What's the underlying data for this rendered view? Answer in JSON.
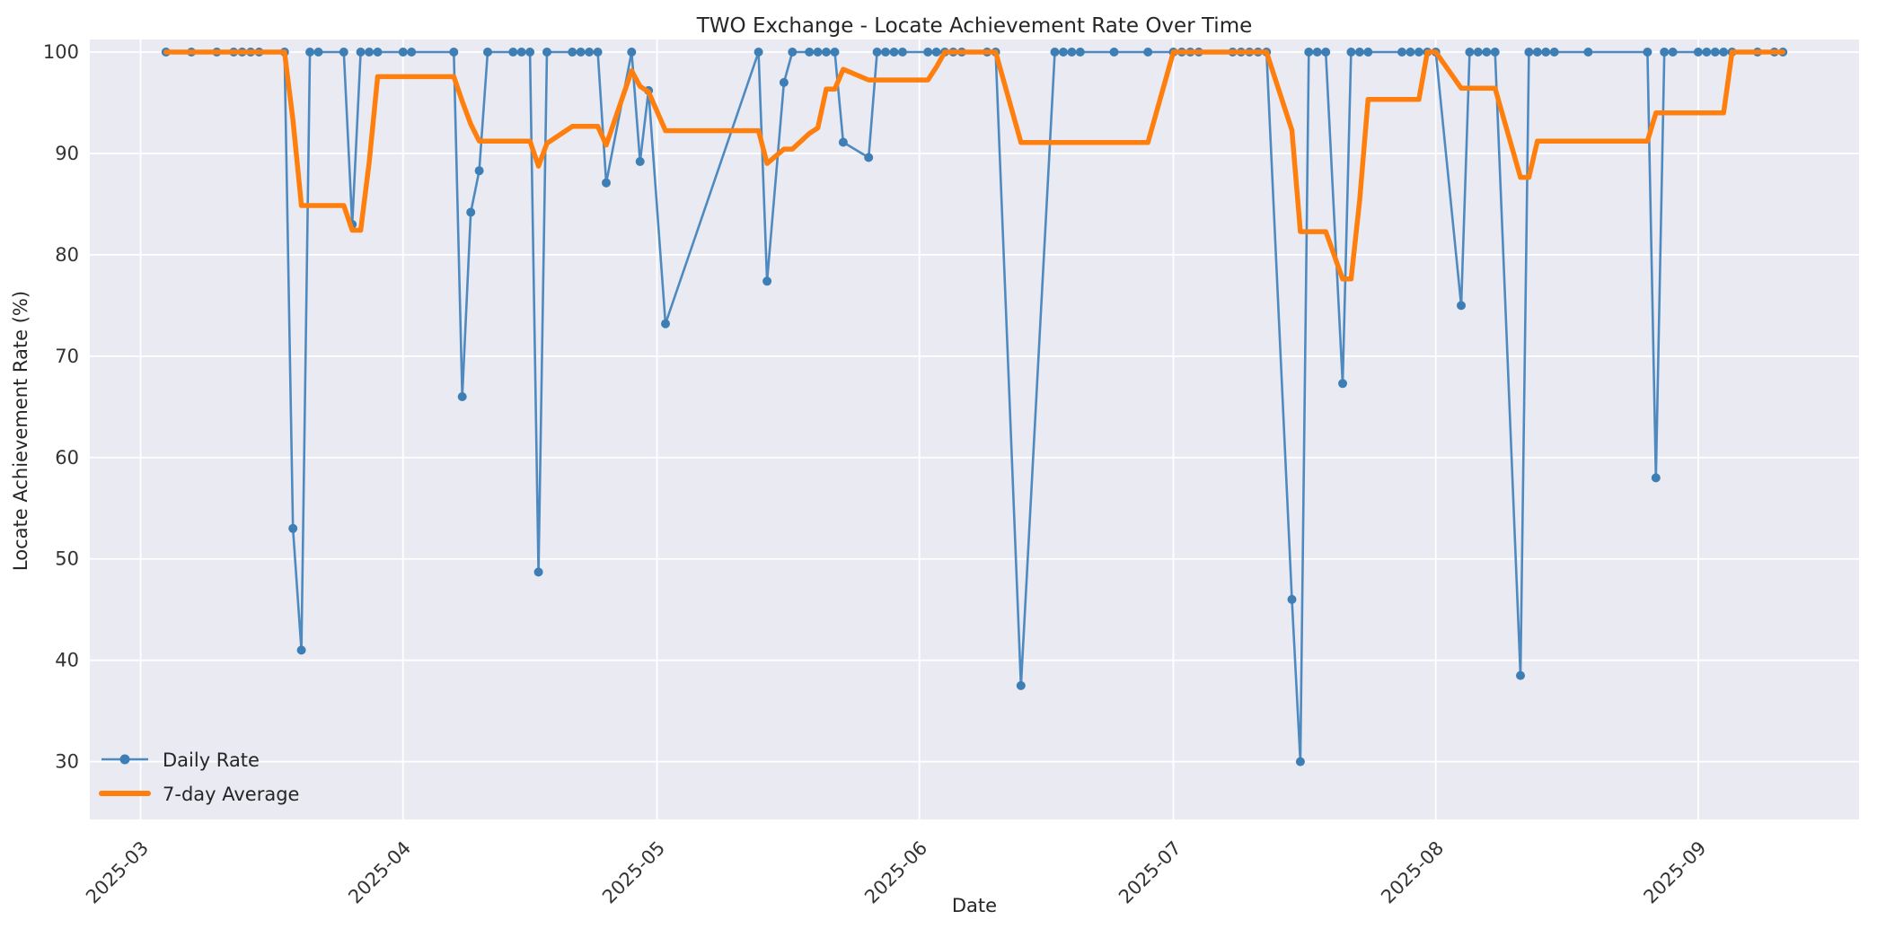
{
  "title": "TWO Exchange - Locate Achievement Rate Over Time",
  "x_axis_label": "Date",
  "y_axis_label": "Locate Achievement Rate (%)",
  "legend": {
    "items": [
      {
        "label": "Daily Rate",
        "color": "#4e8ac0",
        "marker": "circle"
      },
      {
        "label": "7-day Average",
        "color": "#ff7f0e",
        "marker": "line"
      }
    ]
  },
  "colors": {
    "figure_bg": "#ffffff",
    "plot_bg": "#eaeaf2",
    "grid": "#ffffff",
    "daily_line": "#4e8ac0",
    "daily_marker": "#3d7fb5",
    "avg_line": "#ff7f0e",
    "title_text": "#262626",
    "tick_text": "#333333"
  },
  "y_ticks": [
    30,
    40,
    50,
    60,
    70,
    80,
    90,
    100
  ],
  "x_ticks": [
    {
      "date": "2025-03-01",
      "label": "2025-03"
    },
    {
      "date": "2025-04-01",
      "label": "2025-04"
    },
    {
      "date": "2025-05-01",
      "label": "2025-05"
    },
    {
      "date": "2025-06-01",
      "label": "2025-06"
    },
    {
      "date": "2025-07-01",
      "label": "2025-07"
    },
    {
      "date": "2025-08-01",
      "label": "2025-08"
    },
    {
      "date": "2025-09-01",
      "label": "2025-09"
    }
  ],
  "chart_data": {
    "type": "line",
    "title": "TWO Exchange - Locate Achievement Rate Over Time",
    "xlabel": "Date",
    "ylabel": "Locate Achievement Rate (%)",
    "x_range": [
      "2025-02-23",
      "2025-09-20"
    ],
    "ylim": [
      24.3,
      101.24
    ],
    "grid": true,
    "legend_position": "lower-left",
    "avg7_method": "7-point rolling mean of Daily Rate, min_periods=1",
    "series": [
      {
        "name": "Daily Rate",
        "points": [
          [
            "2025-03-04",
            100
          ],
          [
            "2025-03-07",
            100
          ],
          [
            "2025-03-10",
            100
          ],
          [
            "2025-03-12",
            100
          ],
          [
            "2025-03-13",
            100
          ],
          [
            "2025-03-14",
            100
          ],
          [
            "2025-03-15",
            100
          ],
          [
            "2025-03-18",
            100
          ],
          [
            "2025-03-19",
            53
          ],
          [
            "2025-03-20",
            41
          ],
          [
            "2025-03-21",
            100
          ],
          [
            "2025-03-22",
            100
          ],
          [
            "2025-03-25",
            100
          ],
          [
            "2025-03-26",
            83
          ],
          [
            "2025-03-27",
            100
          ],
          [
            "2025-03-28",
            100
          ],
          [
            "2025-03-29",
            100
          ],
          [
            "2025-04-01",
            100
          ],
          [
            "2025-04-02",
            100
          ],
          [
            "2025-04-07",
            100
          ],
          [
            "2025-04-08",
            66
          ],
          [
            "2025-04-09",
            84.2
          ],
          [
            "2025-04-10",
            88.3
          ],
          [
            "2025-04-11",
            100
          ],
          [
            "2025-04-14",
            100
          ],
          [
            "2025-04-15",
            100
          ],
          [
            "2025-04-16",
            100
          ],
          [
            "2025-04-17",
            48.7
          ],
          [
            "2025-04-18",
            100
          ],
          [
            "2025-04-21",
            100
          ],
          [
            "2025-04-22",
            100
          ],
          [
            "2025-04-23",
            100
          ],
          [
            "2025-04-24",
            100
          ],
          [
            "2025-04-25",
            87.1
          ],
          [
            "2025-04-28",
            100
          ],
          [
            "2025-04-29",
            89.2
          ],
          [
            "2025-04-30",
            96.2
          ],
          [
            "2025-05-02",
            73.2
          ],
          [
            "2025-05-13",
            100
          ],
          [
            "2025-05-14",
            77.4
          ],
          [
            "2025-05-16",
            97
          ],
          [
            "2025-05-17",
            100
          ],
          [
            "2025-05-19",
            100
          ],
          [
            "2025-05-20",
            100
          ],
          [
            "2025-05-21",
            100
          ],
          [
            "2025-05-22",
            100
          ],
          [
            "2025-05-23",
            91.1
          ],
          [
            "2025-05-26",
            89.6
          ],
          [
            "2025-05-27",
            100
          ],
          [
            "2025-05-28",
            100
          ],
          [
            "2025-05-29",
            100
          ],
          [
            "2025-05-30",
            100
          ],
          [
            "2025-06-02",
            100
          ],
          [
            "2025-06-03",
            100
          ],
          [
            "2025-06-04",
            100
          ],
          [
            "2025-06-05",
            100
          ],
          [
            "2025-06-06",
            100
          ],
          [
            "2025-06-09",
            100
          ],
          [
            "2025-06-10",
            100
          ],
          [
            "2025-06-13",
            37.5
          ],
          [
            "2025-06-17",
            100
          ],
          [
            "2025-06-18",
            100
          ],
          [
            "2025-06-19",
            100
          ],
          [
            "2025-06-20",
            100
          ],
          [
            "2025-06-24",
            100
          ],
          [
            "2025-06-28",
            100
          ],
          [
            "2025-07-01",
            100
          ],
          [
            "2025-07-02",
            100
          ],
          [
            "2025-07-03",
            100
          ],
          [
            "2025-07-04",
            100
          ],
          [
            "2025-07-08",
            100
          ],
          [
            "2025-07-09",
            100
          ],
          [
            "2025-07-10",
            100
          ],
          [
            "2025-07-11",
            100
          ],
          [
            "2025-07-12",
            100
          ],
          [
            "2025-07-15",
            46
          ],
          [
            "2025-07-16",
            30
          ],
          [
            "2025-07-17",
            100
          ],
          [
            "2025-07-18",
            100
          ],
          [
            "2025-07-19",
            100
          ],
          [
            "2025-07-21",
            67.3
          ],
          [
            "2025-07-22",
            100
          ],
          [
            "2025-07-23",
            100
          ],
          [
            "2025-07-24",
            100
          ],
          [
            "2025-07-28",
            100
          ],
          [
            "2025-07-29",
            100
          ],
          [
            "2025-07-30",
            100
          ],
          [
            "2025-07-31",
            100
          ],
          [
            "2025-08-01",
            100
          ],
          [
            "2025-08-04",
            75
          ],
          [
            "2025-08-05",
            100
          ],
          [
            "2025-08-06",
            100
          ],
          [
            "2025-08-07",
            100
          ],
          [
            "2025-08-08",
            100
          ],
          [
            "2025-08-11",
            38.5
          ],
          [
            "2025-08-12",
            100
          ],
          [
            "2025-08-13",
            100
          ],
          [
            "2025-08-14",
            100
          ],
          [
            "2025-08-15",
            100
          ],
          [
            "2025-08-19",
            100
          ],
          [
            "2025-08-26",
            100
          ],
          [
            "2025-08-27",
            58
          ],
          [
            "2025-08-28",
            100
          ],
          [
            "2025-08-29",
            100
          ],
          [
            "2025-09-01",
            100
          ],
          [
            "2025-09-02",
            100
          ],
          [
            "2025-09-03",
            100
          ],
          [
            "2025-09-04",
            100
          ],
          [
            "2025-09-05",
            100
          ],
          [
            "2025-09-08",
            100
          ],
          [
            "2025-09-10",
            100
          ],
          [
            "2025-09-11",
            100
          ]
        ]
      },
      {
        "name": "7-day Average",
        "derived_from": "Daily Rate",
        "derivation": "rolling_mean_window_7"
      }
    ]
  }
}
